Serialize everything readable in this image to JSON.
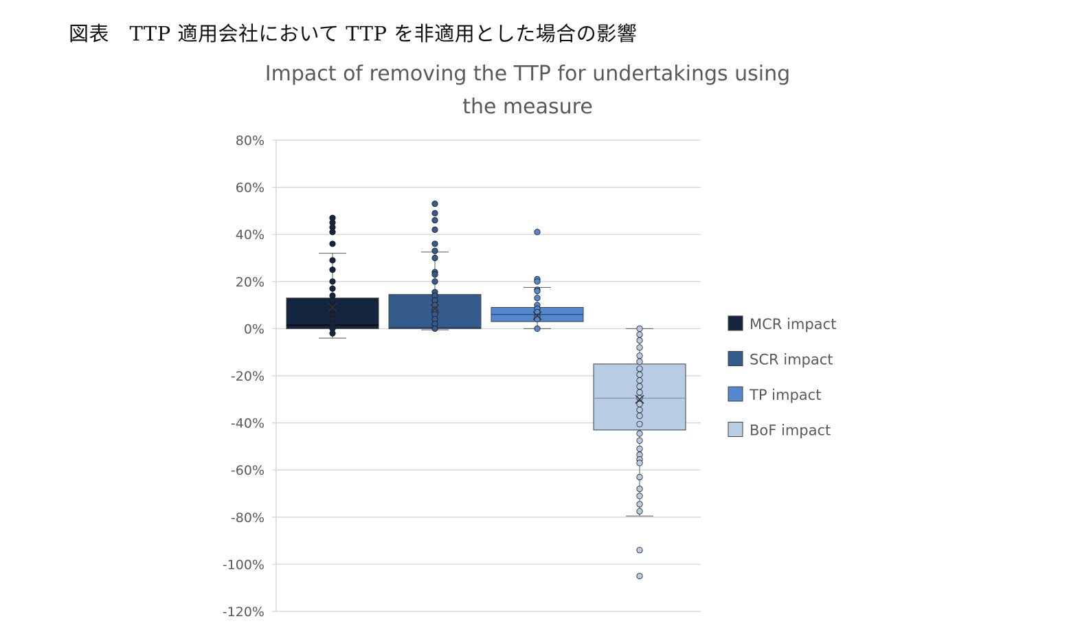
{
  "caption": "図表　TTP 適用会社において TTP を非適用とした場合の影響",
  "chart_data": {
    "type": "box",
    "title_lines": [
      "Impact of removing the TTP for undertakings using",
      "the measure"
    ],
    "ylim": [
      -120,
      80
    ],
    "y_ticks": [
      80,
      60,
      40,
      20,
      0,
      -20,
      -40,
      -60,
      -80,
      -100,
      -120
    ],
    "y_tick_labels": [
      "80%",
      "60%",
      "40%",
      "20%",
      "0%",
      "-20%",
      "-40%",
      "-60%",
      "-80%",
      "-100%",
      "-120%"
    ],
    "grid": true,
    "legend_position": "right",
    "series": [
      {
        "name": "MCR impact",
        "color": "#14253f",
        "q1": 0,
        "median": 1.5,
        "q3": 13,
        "mean": 9,
        "whisker_low": -4,
        "whisker_high": 32,
        "points": [
          47,
          45,
          43,
          41,
          36,
          29,
          25,
          20,
          17,
          14,
          12,
          10,
          8,
          6,
          4,
          2,
          0,
          -2
        ]
      },
      {
        "name": "SCR impact",
        "color": "#345b8c",
        "q1": 0,
        "median": 0.5,
        "q3": 14.5,
        "mean": 8.5,
        "whisker_low": -0.5,
        "whisker_high": 32.5,
        "points": [
          53,
          49,
          46,
          42,
          36,
          33,
          30,
          24,
          23,
          20,
          15.5,
          14,
          12,
          10,
          8,
          6,
          4,
          2,
          0
        ]
      },
      {
        "name": "TP impact",
        "color": "#5588cf",
        "q1": 3,
        "median": 6,
        "q3": 9,
        "mean": 5.5,
        "whisker_low": 0,
        "whisker_high": 17.5,
        "points": [
          41,
          21,
          20,
          16.5,
          16,
          13,
          10,
          8.5,
          7,
          5,
          4,
          0
        ]
      },
      {
        "name": "BoF impact",
        "color": "#b8cce4",
        "q1": -43,
        "median": -29.5,
        "q3": -15,
        "mean": -30,
        "whisker_low": -79.5,
        "whisker_high": 0,
        "points": [
          0,
          -2.5,
          -5,
          -8,
          -11.5,
          -14,
          -17,
          -19.5,
          -22,
          -24.5,
          -27,
          -29.5,
          -32,
          -34.5,
          -37,
          -40.5,
          -44.5,
          -47.5,
          -51,
          -53.5,
          -55.5,
          -57,
          -63,
          -68,
          -71,
          -74.5,
          -77.5,
          -94,
          -105
        ]
      }
    ]
  }
}
